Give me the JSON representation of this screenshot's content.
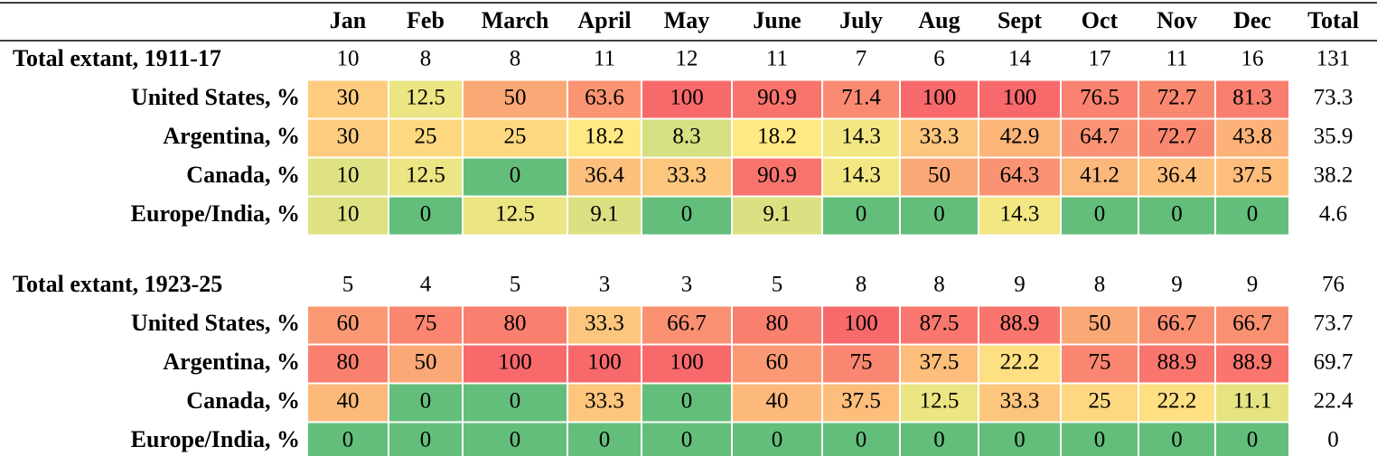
{
  "table": {
    "columns": [
      "Jan",
      "Feb",
      "March",
      "April",
      "May",
      "June",
      "July",
      "Aug",
      "Sept",
      "Oct",
      "Nov",
      "Dec",
      "Total"
    ],
    "color_scale": {
      "low": "#63be7b",
      "mid": "#ffeb84",
      "high": "#f8696b"
    },
    "blocks": [
      {
        "label": "Total extant, 1911-17",
        "values": [
          10,
          8,
          8,
          11,
          12,
          11,
          7,
          6,
          14,
          17,
          11,
          16
        ],
        "total": 131,
        "rows": [
          {
            "label": "United States, %",
            "values": [
              30,
              12.5,
              50,
              63.6,
              100,
              90.9,
              71.4,
              100,
              100,
              76.5,
              72.7,
              81.3
            ],
            "total": 73.3
          },
          {
            "label": "Argentina, %",
            "values": [
              30,
              25,
              25,
              18.2,
              8.3,
              18.2,
              14.3,
              33.3,
              42.9,
              64.7,
              72.7,
              43.8
            ],
            "total": 35.9
          },
          {
            "label": "Canada, %",
            "values": [
              10,
              12.5,
              0,
              36.4,
              33.3,
              90.9,
              14.3,
              50,
              64.3,
              41.2,
              36.4,
              37.5
            ],
            "total": 38.2
          },
          {
            "label": "Europe/India, %",
            "values": [
              10,
              0,
              12.5,
              9.1,
              0,
              9.1,
              0,
              0,
              14.3,
              0,
              0,
              0
            ],
            "total": 4.6
          }
        ]
      },
      {
        "label": "Total extant, 1923-25",
        "values": [
          5,
          4,
          5,
          3,
          3,
          5,
          8,
          8,
          9,
          8,
          9,
          9
        ],
        "total": 76,
        "rows": [
          {
            "label": "United States, %",
            "values": [
              60,
              75,
              80,
              33.3,
              66.7,
              80,
              100,
              87.5,
              88.9,
              50,
              66.7,
              66.7
            ],
            "total": 73.7
          },
          {
            "label": "Argentina, %",
            "values": [
              80,
              50,
              100,
              100,
              100,
              60,
              75,
              37.5,
              22.2,
              75,
              88.9,
              88.9
            ],
            "total": 69.7
          },
          {
            "label": "Canada, %",
            "values": [
              40,
              0,
              0,
              33.3,
              0,
              40,
              37.5,
              12.5,
              33.3,
              25,
              22.2,
              11.1
            ],
            "total": 22.4
          },
          {
            "label": "Europe/India, %",
            "values": [
              0,
              0,
              0,
              0,
              0,
              0,
              0,
              0,
              0,
              0,
              0,
              0
            ],
            "total": 0
          }
        ]
      }
    ]
  }
}
